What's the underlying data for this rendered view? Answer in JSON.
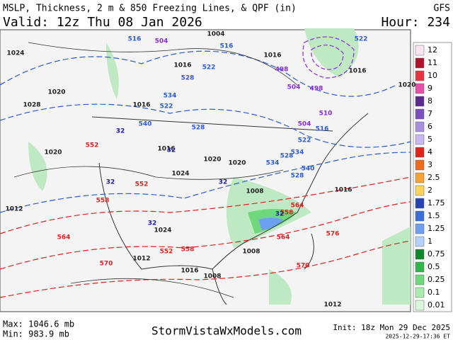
{
  "header": {
    "title": "MSLP, Thickness, 2 m & 850 Freezing Lines, & QPF (in)",
    "valid": "Valid: 12z Thu 08 Jan 2026",
    "model": "GFS",
    "hour": "Hour: 234"
  },
  "legend": {
    "items": [
      {
        "label": "12",
        "color": "#fbe4f0"
      },
      {
        "label": "11",
        "color": "#b0122a"
      },
      {
        "label": "10",
        "color": "#e8343f"
      },
      {
        "label": "9",
        "color": "#e84fa8"
      },
      {
        "label": "8",
        "color": "#5b2a8e"
      },
      {
        "label": "7",
        "color": "#7b4fc0"
      },
      {
        "label": "6",
        "color": "#a88fe0"
      },
      {
        "label": "5",
        "color": "#c9b8f0"
      },
      {
        "label": "4",
        "color": "#e2231a"
      },
      {
        "label": "3",
        "color": "#f06a1a"
      },
      {
        "label": "2.5",
        "color": "#f7a234"
      },
      {
        "label": "2",
        "color": "#fcd45a"
      },
      {
        "label": "1.75",
        "color": "#2444b8"
      },
      {
        "label": "1.5",
        "color": "#3a6fdc"
      },
      {
        "label": "1.25",
        "color": "#6f9ff0"
      },
      {
        "label": "1",
        "color": "#b3d2fb"
      },
      {
        "label": "0.75",
        "color": "#0f8a2a"
      },
      {
        "label": "0.5",
        "color": "#2fb84a"
      },
      {
        "label": "0.25",
        "color": "#6fd87a"
      },
      {
        "label": "0.1",
        "color": "#a9ecae"
      },
      {
        "label": "0.01",
        "color": "#d9f7da"
      }
    ]
  },
  "contours": [
    {
      "color": "#222222",
      "labels": [
        "1020",
        "1024",
        "1028",
        "1016",
        "1020",
        "1016",
        "1024",
        "1016",
        "1020",
        "1008",
        "1016",
        "1020",
        "1024",
        "1012",
        "1016",
        "1008",
        "1012",
        "1008",
        "1012",
        "1016",
        "1020",
        "1016",
        "1004"
      ]
    },
    {
      "color": "#2a5bd7",
      "labels": [
        "516",
        "522",
        "528",
        "534",
        "540",
        "516",
        "522",
        "528",
        "534",
        "540",
        "522",
        "528",
        "534",
        "516",
        "522",
        "528"
      ]
    },
    {
      "color": "#e02020",
      "labels": [
        "552",
        "552",
        "558",
        "564",
        "564",
        "558",
        "570",
        "552",
        "558",
        "564",
        "570",
        "576"
      ]
    },
    {
      "color": "#8a2be2",
      "labels": [
        "504",
        "498",
        "504",
        "510",
        "504",
        "498"
      ]
    },
    {
      "color": "#1a1aa0",
      "labels": [
        "32",
        "32",
        "32",
        "32",
        "32",
        "32"
      ]
    }
  ],
  "footer": {
    "max": "Max: 1046.6 mb",
    "min": "Min: 983.9 mb",
    "site": "StormVistaWxModels.com",
    "init": "Init: 18z Mon 29 Dec 2025",
    "stamp": "2025-12-29-17:36 ET"
  }
}
